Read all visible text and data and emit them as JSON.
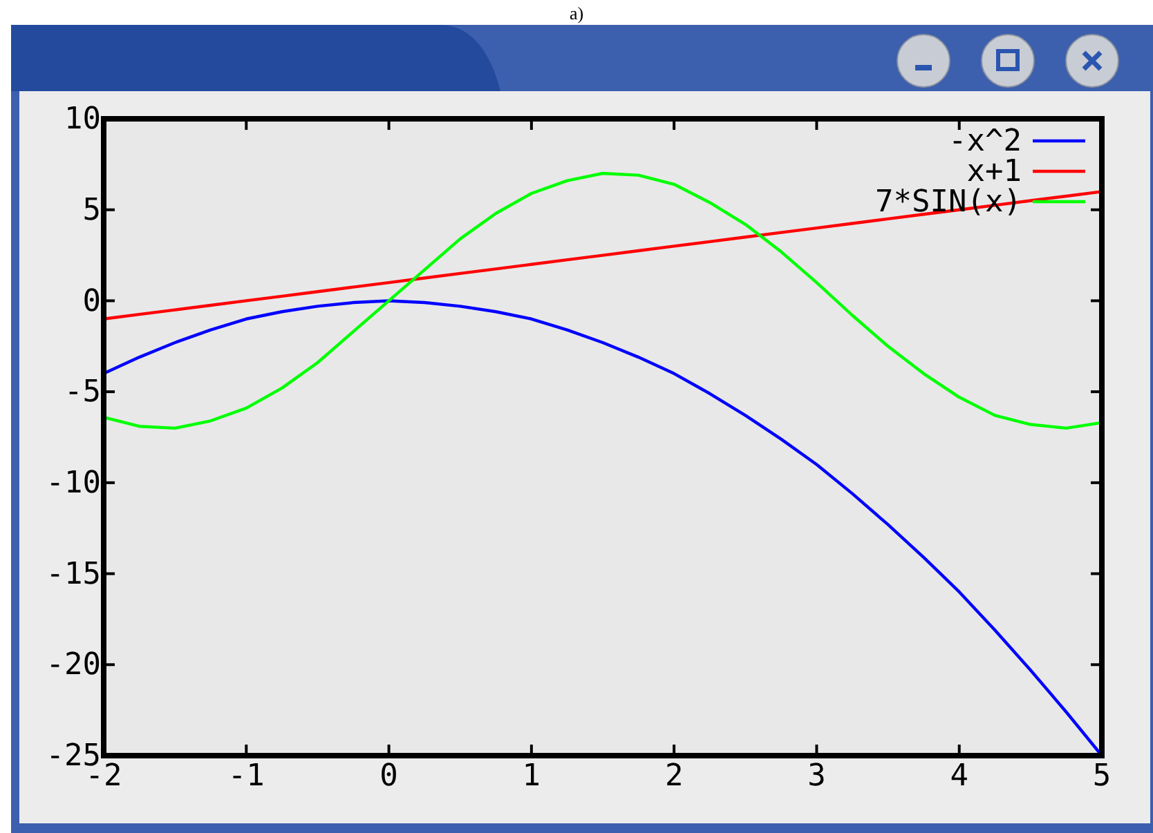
{
  "chart_data": {
    "type": "line",
    "annotations": [
      "a)"
    ],
    "x": [
      -2,
      -1.75,
      -1.5,
      -1.25,
      -1,
      -0.75,
      -0.5,
      -0.25,
      0,
      0.25,
      0.5,
      0.75,
      1,
      1.25,
      1.5,
      1.75,
      2,
      2.25,
      2.5,
      2.75,
      3,
      3.25,
      3.5,
      3.75,
      4,
      4.25,
      4.5,
      4.75,
      5
    ],
    "series": [
      {
        "name": "-x^2",
        "color": "#0000ff",
        "values": [
          -4,
          -3.1,
          -2.3,
          -1.6,
          -1,
          -0.6,
          -0.3,
          -0.1,
          0,
          -0.1,
          -0.3,
          -0.6,
          -1,
          -1.6,
          -2.3,
          -3.1,
          -4,
          -5.1,
          -6.3,
          -7.6,
          -9,
          -10.6,
          -12.3,
          -14.1,
          -16,
          -18.1,
          -20.3,
          -22.6,
          -25
        ]
      },
      {
        "name": "x+1",
        "color": "#ff0000",
        "values": [
          -1,
          -0.75,
          -0.5,
          -0.25,
          0,
          0.25,
          0.5,
          0.75,
          1,
          1.25,
          1.5,
          1.75,
          2,
          2.25,
          2.5,
          2.75,
          3,
          3.25,
          3.5,
          3.75,
          4,
          4.25,
          4.5,
          4.75,
          5,
          5.25,
          5.5,
          5.75,
          6
        ]
      },
      {
        "name": "7*SIN(x)",
        "color": "#00ff00",
        "values": [
          -6.4,
          -6.9,
          -7,
          -6.6,
          -5.9,
          -4.8,
          -3.4,
          -1.7,
          0,
          1.7,
          3.4,
          4.8,
          5.9,
          6.6,
          7,
          6.9,
          6.4,
          5.4,
          4.2,
          2.7,
          1,
          -0.8,
          -2.5,
          -4,
          -5.3,
          -6.3,
          -6.8,
          -7,
          -6.7
        ]
      }
    ],
    "xlim": [
      -2,
      5
    ],
    "xticks": [
      -2,
      -1,
      0,
      1,
      2,
      3,
      4,
      5
    ],
    "ylim": [
      -25,
      10
    ],
    "yticks": [
      -25,
      -20,
      -15,
      -10,
      -5,
      0,
      5,
      10
    ],
    "grid": false,
    "legend": "top right",
    "marker": "none",
    "line_style": "solid"
  }
}
